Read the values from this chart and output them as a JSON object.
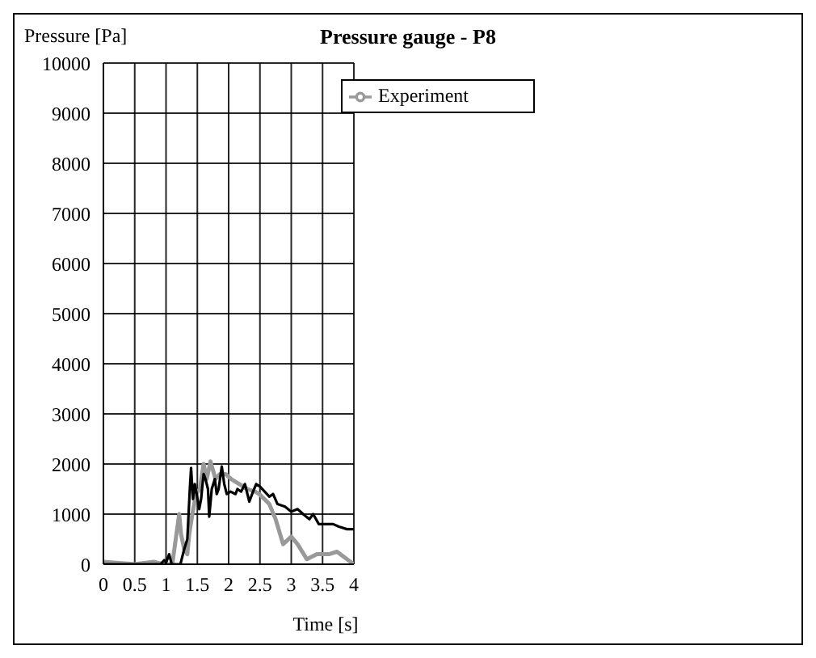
{
  "chart_data": {
    "type": "line",
    "title": "Pressure gauge - P8",
    "xlabel": "Time [s]",
    "ylabel": "Pressure [Pa]",
    "xlim": [
      0,
      4
    ],
    "xticks": [
      0,
      0.5,
      1,
      1.5,
      2,
      2.5,
      3,
      3.5,
      4
    ],
    "ylim": [
      0,
      10000
    ],
    "yticks": [
      0,
      1000,
      2000,
      3000,
      4000,
      5000,
      6000,
      7000,
      8000,
      9000,
      10000
    ],
    "grid": true,
    "legend": "top right",
    "line_style": "solid",
    "marker": "none",
    "series": [
      {
        "name": "Experiment",
        "color": "#999999",
        "x": [
          0,
          0.5,
          0.8,
          0.95,
          1.1,
          1.21,
          1.24,
          1.29,
          1.34,
          1.37,
          1.42,
          1.48,
          1.54,
          1.6,
          1.65,
          1.71,
          1.79,
          1.86,
          1.95,
          2.04,
          2.17,
          2.3,
          2.42,
          2.49,
          2.65,
          2.75,
          2.87,
          3,
          3.1,
          3.25,
          3.41,
          3.6,
          3.73,
          3.89,
          4
        ],
        "values": [
          50,
          0,
          50,
          0,
          0,
          1000,
          600,
          300,
          200,
          600,
          1000,
          1400,
          1500,
          2000,
          1700,
          2050,
          1700,
          1800,
          1800,
          1700,
          1600,
          1500,
          1450,
          1400,
          1200,
          900,
          400,
          550,
          400,
          100,
          200,
          200,
          250,
          100,
          0
        ]
      },
      {
        "color": "#000000",
        "x": [
          0,
          0.91,
          0.97,
          1,
          1.05,
          1.09,
          1.15,
          1.23,
          1.29,
          1.34,
          1.38,
          1.4,
          1.43,
          1.46,
          1.49,
          1.53,
          1.56,
          1.6,
          1.63,
          1.67,
          1.69,
          1.73,
          1.78,
          1.81,
          1.84,
          1.89,
          1.93,
          1.97,
          2.03,
          2.11,
          2.14,
          2.2,
          2.26,
          2.33,
          2.39,
          2.44,
          2.5,
          2.65,
          2.71,
          2.78,
          2.9,
          3,
          3.1,
          3.19,
          3.29,
          3.35,
          3.44,
          3.54,
          3.67,
          3.76,
          3.89,
          4
        ],
        "values": [
          0,
          0,
          80,
          30,
          200,
          0,
          0,
          0,
          300,
          500,
          1500,
          1920,
          1300,
          1600,
          1400,
          1100,
          1300,
          1800,
          1700,
          1500,
          950,
          1500,
          1700,
          1400,
          1500,
          1950,
          1600,
          1400,
          1450,
          1400,
          1500,
          1450,
          1600,
          1250,
          1450,
          1600,
          1550,
          1350,
          1400,
          1200,
          1150,
          1050,
          1100,
          1000,
          900,
          1000,
          800,
          800,
          800,
          750,
          700,
          700
        ]
      }
    ]
  }
}
